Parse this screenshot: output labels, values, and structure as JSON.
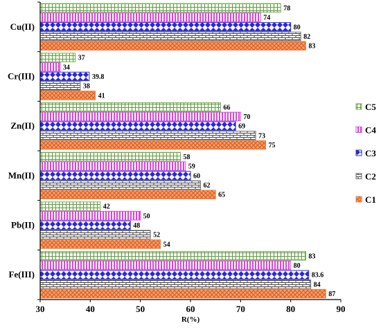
{
  "chart_data": {
    "type": "bar",
    "orientation": "horizontal",
    "categories": [
      "Fe(III)",
      "Pb(II)",
      "Mn(II)",
      "Zn(II)",
      "Cr(III)",
      "Cu(II)"
    ],
    "series": [
      {
        "name": "C1",
        "values": [
          87,
          54,
          65,
          75,
          41,
          83
        ],
        "color": "#f08040",
        "pattern": "crosshatch"
      },
      {
        "name": "C2",
        "values": [
          84,
          52,
          62,
          73,
          38,
          82
        ],
        "color": "#6e6e6e",
        "pattern": "brick"
      },
      {
        "name": "C3",
        "values": [
          83.6,
          48,
          60,
          69,
          39.8,
          80
        ],
        "color": "#3030e0",
        "pattern": "diamond"
      },
      {
        "name": "C4",
        "values": [
          80,
          50,
          59,
          70,
          34,
          74
        ],
        "color": "#e040e0",
        "pattern": "vertical-lines"
      },
      {
        "name": "C5",
        "values": [
          83,
          42,
          58,
          66,
          37,
          78
        ],
        "color": "#70b050",
        "pattern": "grid"
      }
    ],
    "value_labels": [
      [
        "87",
        "54",
        "65",
        "75",
        "41",
        "83"
      ],
      [
        "84",
        "52",
        "62",
        "73",
        "38",
        "82"
      ],
      [
        "83.6",
        "48",
        "60",
        "69",
        "39.8",
        "80"
      ],
      [
        "80",
        "50",
        "59",
        "70",
        "34",
        "74"
      ],
      [
        "83",
        "42",
        "58",
        "66",
        "37",
        "78"
      ]
    ],
    "xlabel": "R(%)",
    "ylabel": "",
    "title": "",
    "xlim": [
      30,
      90
    ],
    "xticks": [
      "30",
      "40",
      "50",
      "60",
      "70",
      "80",
      "90"
    ],
    "grid": false,
    "legend_placement": "right",
    "legend_order": [
      "C5",
      "C4",
      "C3",
      "C2",
      "C1"
    ]
  }
}
